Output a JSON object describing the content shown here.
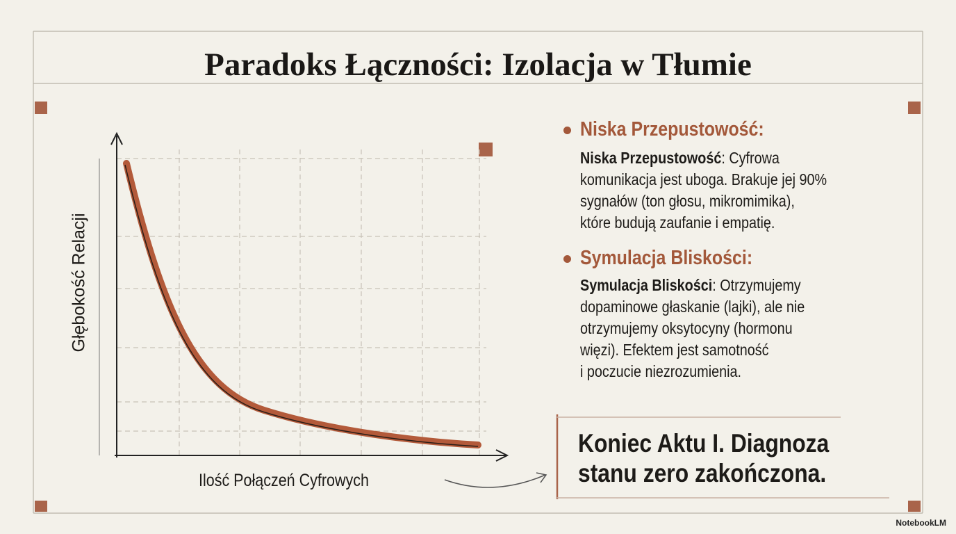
{
  "title": "Paradoks Łączności: Izolacja w Tłumie",
  "chart": {
    "x_label": "Ilość Połączeń Cyfrowych",
    "y_label": "Głębokość Relacji"
  },
  "bullets": [
    {
      "heading": "Niska Przepustowość:",
      "label": "Niska Przepustowość",
      "lines": [
        ": Cyfrowa",
        "komunikacja jest uboga. Brakuje jej 90%",
        "sygnałów (ton głosu, mikromimika),",
        "które budują zaufanie i empatię."
      ]
    },
    {
      "heading": "Symulacja Bliskości:",
      "label": "Symulacja Bliskości",
      "lines": [
        ": Otrzymujemy",
        "dopaminowe głaskanie (lajki), ale nie",
        "otrzymujemy oksytocyny (hormonu",
        "więzi). Efektem jest samotność",
        "i poczucie niezrozumienia."
      ]
    }
  ],
  "conclusion": [
    "Koniec Aktu I. Diagnoza",
    "stanu zero zakończona."
  ],
  "brand": "NotebookLM"
}
